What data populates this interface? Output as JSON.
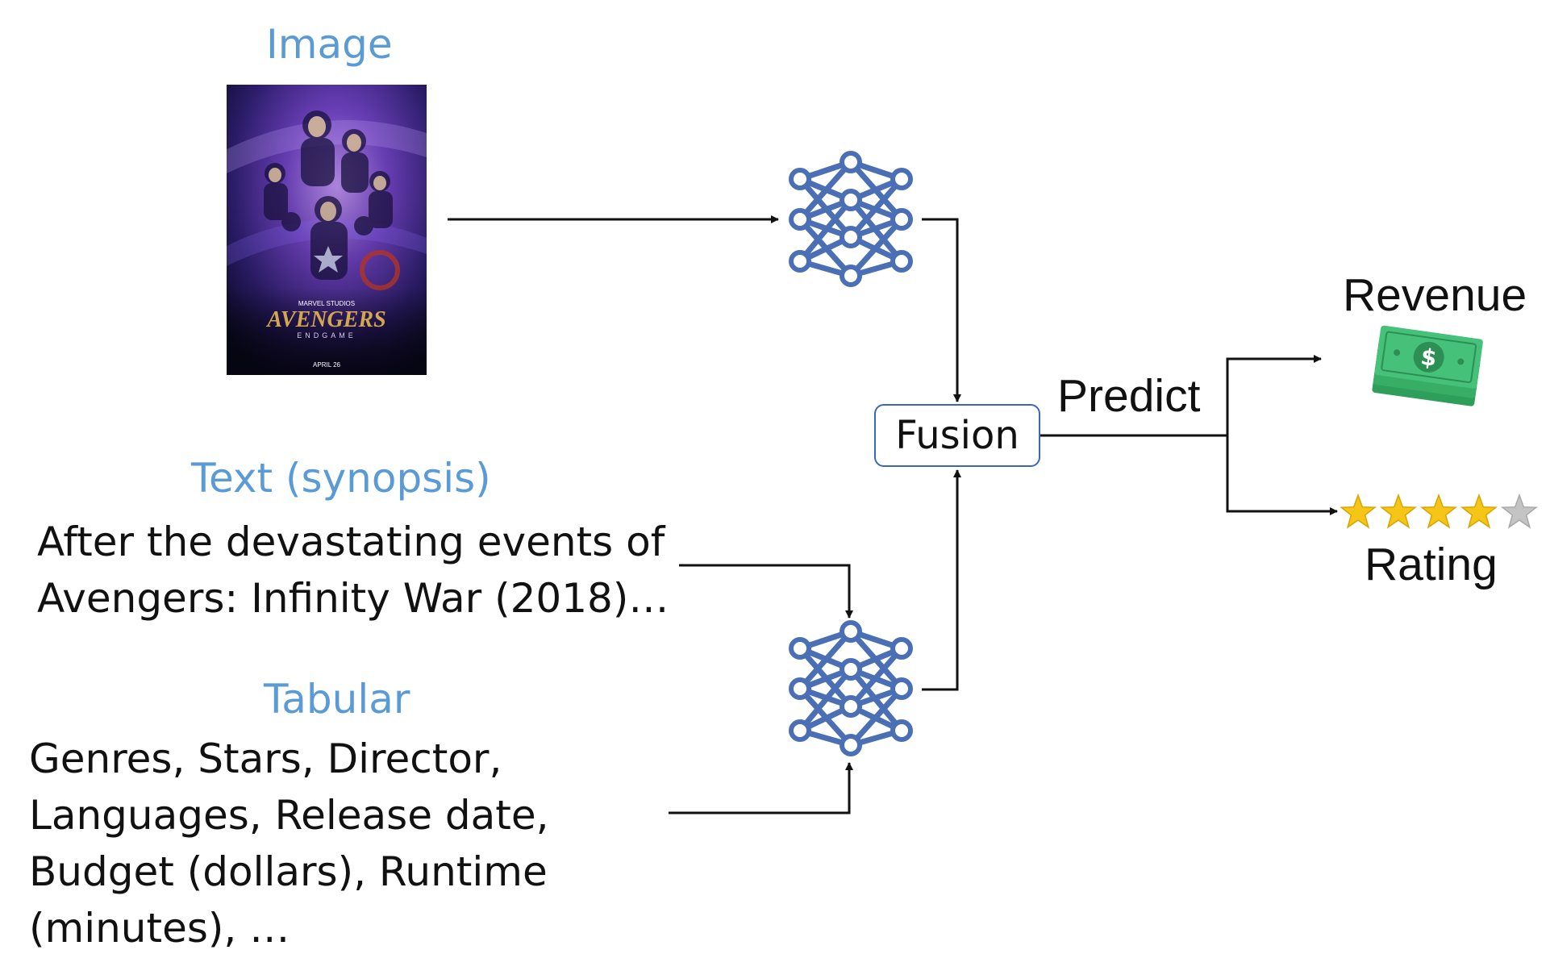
{
  "inputs": {
    "image": {
      "title": "Image"
    },
    "text": {
      "title": "Text (synopsis)",
      "lines": [
        "After the devastating events of",
        "Avengers: Infinity War (2018)…"
      ]
    },
    "tabular": {
      "title": "Tabular",
      "lines": [
        "Genres, Stars, Director,",
        "Languages, Release date,",
        "Budget (dollars), Runtime",
        "(minutes), …"
      ]
    }
  },
  "poster": {
    "studio_label": "MARVEL STUDIOS",
    "title_art": "AVENGERS",
    "subtitle_art": "ENDGAME",
    "date_art": "APRIL 26"
  },
  "fusion": {
    "label": "Fusion"
  },
  "predict": {
    "label": "Predict"
  },
  "outputs": {
    "revenue": {
      "label": "Revenue",
      "icon": "money-icon",
      "symbol": "$"
    },
    "rating": {
      "label": "Rating",
      "icon": "star-rating-icon",
      "value": 4,
      "max": 5
    }
  },
  "colors": {
    "section_title": "#5b9bd5",
    "network": "#4a6fb5",
    "fusion_border": "#3a67b8",
    "money": "#3cb371",
    "star_filled": "#f5c518",
    "star_empty": "#c4c4c4"
  }
}
